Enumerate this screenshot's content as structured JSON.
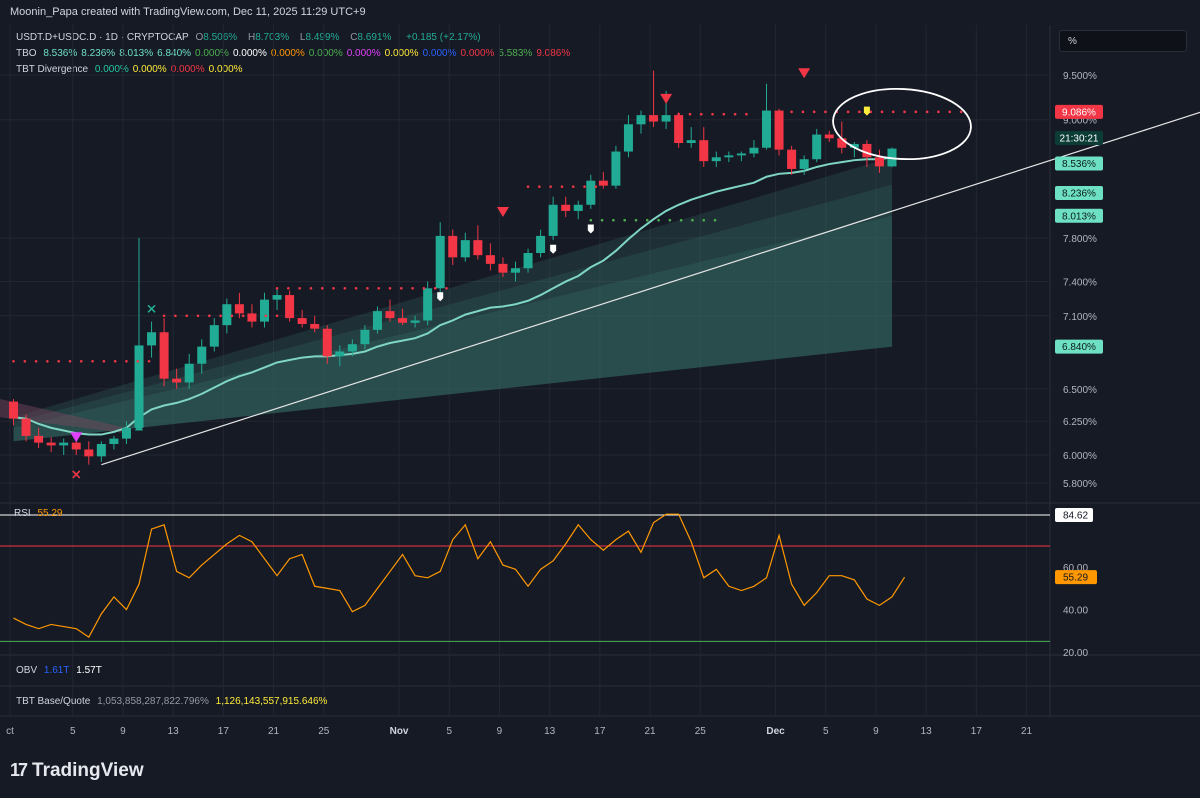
{
  "header": {
    "title": "Moonin_Papa created with TradingView.com, Dec 11, 2025 11:29 UTC+9"
  },
  "legend": {
    "symbol": "USDT.D+USDC.D · 1D · CRYPTOCAP",
    "ohlc": [
      {
        "k": "O",
        "v": "8.506%"
      },
      {
        "k": "H",
        "v": "8.703%"
      },
      {
        "k": "L",
        "v": "8.499%"
      },
      {
        "k": "C",
        "v": "8.691%"
      }
    ],
    "change": "+0.185 (+2.17%)",
    "tbo_label": "TBO",
    "tbo_values": [
      {
        "v": "8.536%",
        "c": "#6ee0c4"
      },
      {
        "v": "8.236%",
        "c": "#6ee0c4"
      },
      {
        "v": "8.013%",
        "c": "#6ee0c4"
      },
      {
        "v": "6.840%",
        "c": "#6ee0c4"
      },
      {
        "v": "0.000%",
        "c": "#4caf50"
      },
      {
        "v": "0.000%",
        "c": "#ffffff"
      },
      {
        "v": "0.000%",
        "c": "#ff9800"
      },
      {
        "v": "0.000%",
        "c": "#4caf50"
      },
      {
        "v": "0.000%",
        "c": "#e040fb"
      },
      {
        "v": "0.000%",
        "c": "#ffeb3b"
      },
      {
        "v": "0.000%",
        "c": "#2962ff"
      },
      {
        "v": "0.000%",
        "c": "#f23645"
      },
      {
        "v": "5.583%",
        "c": "#4caf50"
      },
      {
        "v": "9.086%",
        "c": "#f23645"
      }
    ],
    "div_label": "TBT Divergence",
    "div_values": [
      {
        "v": "0.000%",
        "c": "#26c6a0"
      },
      {
        "v": "0.000%",
        "c": "#ffeb3b"
      },
      {
        "v": "0.000%",
        "c": "#f23645"
      },
      {
        "v": "0.000%",
        "c": "#ffeb3b"
      }
    ]
  },
  "unit_box": "%",
  "rsi_pane": {
    "label": "RSI",
    "value": "55.29"
  },
  "obv_pane": {
    "label": "OBV",
    "v1": "1.61T",
    "v2": "1.57T"
  },
  "bq_pane": {
    "label": "TBT Base/Quote",
    "v1": "1,053,858,287,822.796%",
    "v2": "1,126,143,557,915.646%"
  },
  "logo": {
    "text": "TradingView",
    "mark": "17"
  },
  "colors": {
    "up": "#22ab94",
    "down": "#f23645",
    "rsi_line": "#ff9800",
    "bg": "#161a25",
    "grid": "#232632",
    "text": "#b2b5be",
    "ema": "#7fd6c2"
  },
  "chart_data": [
    {
      "type": "candlestick",
      "title": "USDT.D+USDC.D · 1D · CRYPTOCAP",
      "scale": "log",
      "ylim": [
        5.7,
        9.8
      ],
      "y_ticks": [
        "9.500%",
        "9.000%",
        "7.800%",
        "7.400%",
        "7.100%",
        "6.500%",
        "6.250%",
        "6.000%",
        "5.800%"
      ],
      "x_ticks": [
        {
          "d": 0,
          "l": "ct"
        },
        {
          "d": 5,
          "l": "5"
        },
        {
          "d": 9,
          "l": "9"
        },
        {
          "d": 13,
          "l": "13"
        },
        {
          "d": 17,
          "l": "17"
        },
        {
          "d": 21,
          "l": "21"
        },
        {
          "d": 25,
          "l": "25"
        },
        {
          "d": 31,
          "l": "Nov"
        },
        {
          "d": 35,
          "l": "5"
        },
        {
          "d": 39,
          "l": "9"
        },
        {
          "d": 43,
          "l": "13"
        },
        {
          "d": 47,
          "l": "17"
        },
        {
          "d": 51,
          "l": "21"
        },
        {
          "d": 55,
          "l": "25"
        },
        {
          "d": 61,
          "l": "Dec"
        },
        {
          "d": 65,
          "l": "5"
        },
        {
          "d": 69,
          "l": "9"
        },
        {
          "d": 73,
          "l": "13"
        },
        {
          "d": 77,
          "l": "17"
        },
        {
          "d": 81,
          "l": "21"
        }
      ],
      "candles": [
        [
          6.4,
          6.42,
          6.22,
          6.27
        ],
        [
          6.27,
          6.3,
          6.1,
          6.14
        ],
        [
          6.14,
          6.2,
          6.05,
          6.09
        ],
        [
          6.09,
          6.13,
          6.02,
          6.07
        ],
        [
          6.07,
          6.12,
          6.0,
          6.09
        ],
        [
          6.09,
          6.13,
          6.0,
          6.04
        ],
        [
          6.04,
          6.1,
          5.93,
          5.99
        ],
        [
          5.99,
          6.1,
          5.95,
          6.08
        ],
        [
          6.08,
          6.14,
          6.04,
          6.12
        ],
        [
          6.12,
          6.25,
          6.08,
          6.2
        ],
        [
          6.2,
          7.8,
          6.18,
          6.85
        ],
        [
          6.85,
          7.05,
          6.75,
          6.96
        ],
        [
          6.96,
          7.08,
          6.52,
          6.58
        ],
        [
          6.58,
          6.66,
          6.5,
          6.55
        ],
        [
          6.55,
          6.78,
          6.5,
          6.7
        ],
        [
          6.7,
          6.9,
          6.62,
          6.84
        ],
        [
          6.84,
          7.08,
          6.8,
          7.02
        ],
        [
          7.02,
          7.25,
          6.95,
          7.2
        ],
        [
          7.2,
          7.3,
          7.08,
          7.12
        ],
        [
          7.12,
          7.2,
          7.0,
          7.05
        ],
        [
          7.05,
          7.3,
          7.0,
          7.24
        ],
        [
          7.24,
          7.34,
          7.15,
          7.28
        ],
        [
          7.28,
          7.32,
          7.05,
          7.08
        ],
        [
          7.08,
          7.15,
          7.0,
          7.03
        ],
        [
          7.03,
          7.1,
          6.96,
          6.99
        ],
        [
          6.99,
          7.02,
          6.7,
          6.76
        ],
        [
          6.76,
          6.85,
          6.68,
          6.8
        ],
        [
          6.8,
          6.9,
          6.76,
          6.86
        ],
        [
          6.86,
          7.02,
          6.82,
          6.98
        ],
        [
          6.98,
          7.18,
          6.95,
          7.14
        ],
        [
          7.14,
          7.24,
          7.05,
          7.08
        ],
        [
          7.08,
          7.16,
          7.02,
          7.04
        ],
        [
          7.04,
          7.1,
          7.0,
          7.06
        ],
        [
          7.06,
          7.4,
          7.02,
          7.34
        ],
        [
          7.34,
          7.95,
          7.3,
          7.82
        ],
        [
          7.82,
          7.88,
          7.55,
          7.62
        ],
        [
          7.62,
          7.85,
          7.58,
          7.78
        ],
        [
          7.78,
          7.92,
          7.6,
          7.64
        ],
        [
          7.64,
          7.75,
          7.5,
          7.56
        ],
        [
          7.56,
          7.62,
          7.44,
          7.48
        ],
        [
          7.48,
          7.58,
          7.4,
          7.52
        ],
        [
          7.52,
          7.7,
          7.48,
          7.66
        ],
        [
          7.66,
          7.88,
          7.62,
          7.82
        ],
        [
          7.82,
          8.2,
          7.78,
          8.12
        ],
        [
          8.12,
          8.2,
          8.0,
          8.06
        ],
        [
          8.06,
          8.16,
          7.98,
          8.12
        ],
        [
          8.12,
          8.42,
          8.08,
          8.36
        ],
        [
          8.36,
          8.45,
          8.28,
          8.31
        ],
        [
          8.31,
          8.72,
          8.28,
          8.66
        ],
        [
          8.66,
          9.05,
          8.6,
          8.95
        ],
        [
          8.95,
          9.1,
          8.85,
          9.05
        ],
        [
          9.05,
          9.55,
          8.92,
          8.98
        ],
        [
          8.98,
          9.32,
          8.9,
          9.05
        ],
        [
          9.05,
          9.08,
          8.7,
          8.75
        ],
        [
          8.75,
          8.92,
          8.7,
          8.78
        ],
        [
          8.78,
          8.92,
          8.5,
          8.56
        ],
        [
          8.56,
          8.66,
          8.5,
          8.6
        ],
        [
          8.6,
          8.66,
          8.55,
          8.62
        ],
        [
          8.62,
          8.66,
          8.56,
          8.64
        ],
        [
          8.64,
          8.78,
          8.6,
          8.7
        ],
        [
          8.7,
          9.4,
          8.68,
          9.1
        ],
        [
          9.1,
          9.12,
          8.62,
          8.68
        ],
        [
          8.68,
          8.72,
          8.42,
          8.48
        ],
        [
          8.48,
          8.62,
          8.42,
          8.58
        ],
        [
          8.58,
          8.9,
          8.55,
          8.84
        ],
        [
          8.84,
          8.88,
          8.76,
          8.8
        ],
        [
          8.8,
          8.98,
          8.64,
          8.7
        ],
        [
          8.7,
          8.76,
          8.6,
          8.74
        ],
        [
          8.74,
          8.78,
          8.5,
          8.6
        ],
        [
          8.6,
          8.68,
          8.44,
          8.506
        ],
        [
          8.506,
          8.703,
          8.499,
          8.691
        ]
      ],
      "ema_line": [
        6.28,
        6.27,
        6.23,
        6.2,
        6.18,
        6.16,
        6.15,
        6.15,
        6.17,
        6.2,
        6.28,
        6.34,
        6.37,
        6.39,
        6.42,
        6.46,
        6.51,
        6.56,
        6.6,
        6.63,
        6.67,
        6.71,
        6.73,
        6.75,
        6.76,
        6.76,
        6.77,
        6.78,
        6.8,
        6.84,
        6.87,
        6.89,
        6.91,
        6.95,
        7.02,
        7.06,
        7.11,
        7.14,
        7.17,
        7.18,
        7.2,
        7.23,
        7.28,
        7.34,
        7.4,
        7.45,
        7.53,
        7.59,
        7.68,
        7.79,
        7.89,
        7.98,
        8.06,
        8.12,
        8.17,
        8.21,
        8.25,
        8.28,
        8.31,
        8.34,
        8.4,
        8.43,
        8.44,
        8.46,
        8.5,
        8.53,
        8.55,
        8.57,
        8.58,
        8.58,
        8.6
      ],
      "cloud_layers": [
        {
          "start": [
            6.28,
            6.1
          ],
          "end": [
            8.6,
            6.84
          ]
        },
        {
          "start": [
            6.24,
            6.1
          ],
          "end": [
            8.32,
            6.84
          ]
        },
        {
          "start": [
            6.2,
            6.1
          ],
          "end": [
            8.013,
            6.84
          ]
        }
      ],
      "trendline": {
        "d0": 7,
        "v0": 5.93,
        "d1": 95,
        "v1": 9.1
      },
      "resistance_dots": [
        {
          "v": 6.72,
          "d0": 0,
          "d1": 11
        },
        {
          "v": 7.1,
          "d0": 12,
          "d1": 21
        },
        {
          "v": 7.34,
          "d0": 21,
          "d1": 35
        },
        {
          "v": 8.3,
          "d0": 41,
          "d1": 47
        },
        {
          "v": 9.06,
          "d0": 53,
          "d1": 59
        },
        {
          "v": 9.086,
          "d0": 62,
          "d1": 76
        }
      ],
      "support_dots": [
        {
          "v": 7.97,
          "d0": 46,
          "d1": 56
        }
      ],
      "markers": [
        {
          "d": 5,
          "v": 6.13,
          "shape": "tri-down",
          "color": "#e040fb"
        },
        {
          "d": 5,
          "v": 5.86,
          "shape": "x",
          "color": "#f23645"
        },
        {
          "d": 10,
          "v": 6.21,
          "shape": "tri-up",
          "color": "#22ab94"
        },
        {
          "d": 11,
          "v": 7.16,
          "shape": "x",
          "color": "#22ab94"
        },
        {
          "d": 39,
          "v": 8.05,
          "shape": "tri-down",
          "color": "#f23645"
        },
        {
          "d": 52,
          "v": 9.23,
          "shape": "tri-down",
          "color": "#f23645"
        },
        {
          "d": 63,
          "v": 9.52,
          "shape": "tri-down",
          "color": "#f23645"
        },
        {
          "d": 34,
          "v": 7.27,
          "shape": "pin",
          "color": "#ffffff"
        },
        {
          "d": 43,
          "v": 7.7,
          "shape": "pin",
          "color": "#ffffff"
        },
        {
          "d": 46,
          "v": 7.89,
          "shape": "pin",
          "color": "#ffffff"
        },
        {
          "d": 68,
          "v": 9.1,
          "shape": "pin",
          "color": "#ffeb3b"
        }
      ],
      "price_labels": [
        {
          "text": "9.086%",
          "v": 9.086,
          "bg": "#f23645",
          "fg": "#ffffff"
        },
        {
          "text": "21:30:21",
          "v": 8.74,
          "bg": "#0b3d36",
          "fg": "#ffffff",
          "dy": -6
        },
        {
          "text": "8.536%",
          "v": 8.536,
          "bg": "#6ee0c4",
          "fg": "#0b1b17"
        },
        {
          "text": "8.236%",
          "v": 8.236,
          "bg": "#6ee0c4",
          "fg": "#0b1b17"
        },
        {
          "text": "8.013%",
          "v": 8.013,
          "bg": "#6ee0c4",
          "fg": "#0b1b17"
        },
        {
          "text": "6.840%",
          "v": 6.84,
          "bg": "#6ee0c4",
          "fg": "#0b1b17"
        }
      ]
    },
    {
      "type": "line",
      "title": "RSI",
      "ylim": [
        15,
        90
      ],
      "y_ticks": [
        "84.62",
        "60.00",
        "40.00",
        "20.00"
      ],
      "levels": [
        {
          "v": 84.62,
          "color": "#ffffff"
        },
        {
          "v": 70,
          "color": "#f23645"
        },
        {
          "v": 25,
          "color": "#4caf50"
        }
      ],
      "series": [
        {
          "values": [
            36,
            33,
            31,
            33,
            32,
            31,
            27,
            38,
            46,
            40,
            52,
            78,
            80,
            58,
            55,
            61,
            66,
            71,
            75,
            72,
            64,
            56,
            64,
            66,
            51,
            50,
            49,
            39,
            42,
            50,
            58,
            66,
            56,
            55,
            58,
            73,
            80,
            64,
            72,
            61,
            59,
            51,
            59,
            63,
            71,
            80,
            73,
            68,
            73,
            77,
            67,
            81,
            85,
            85,
            72,
            55,
            59,
            51,
            49,
            51,
            55,
            75,
            52,
            42,
            48,
            56,
            56,
            54,
            45,
            42,
            46,
            55.29
          ]
        }
      ]
    }
  ]
}
